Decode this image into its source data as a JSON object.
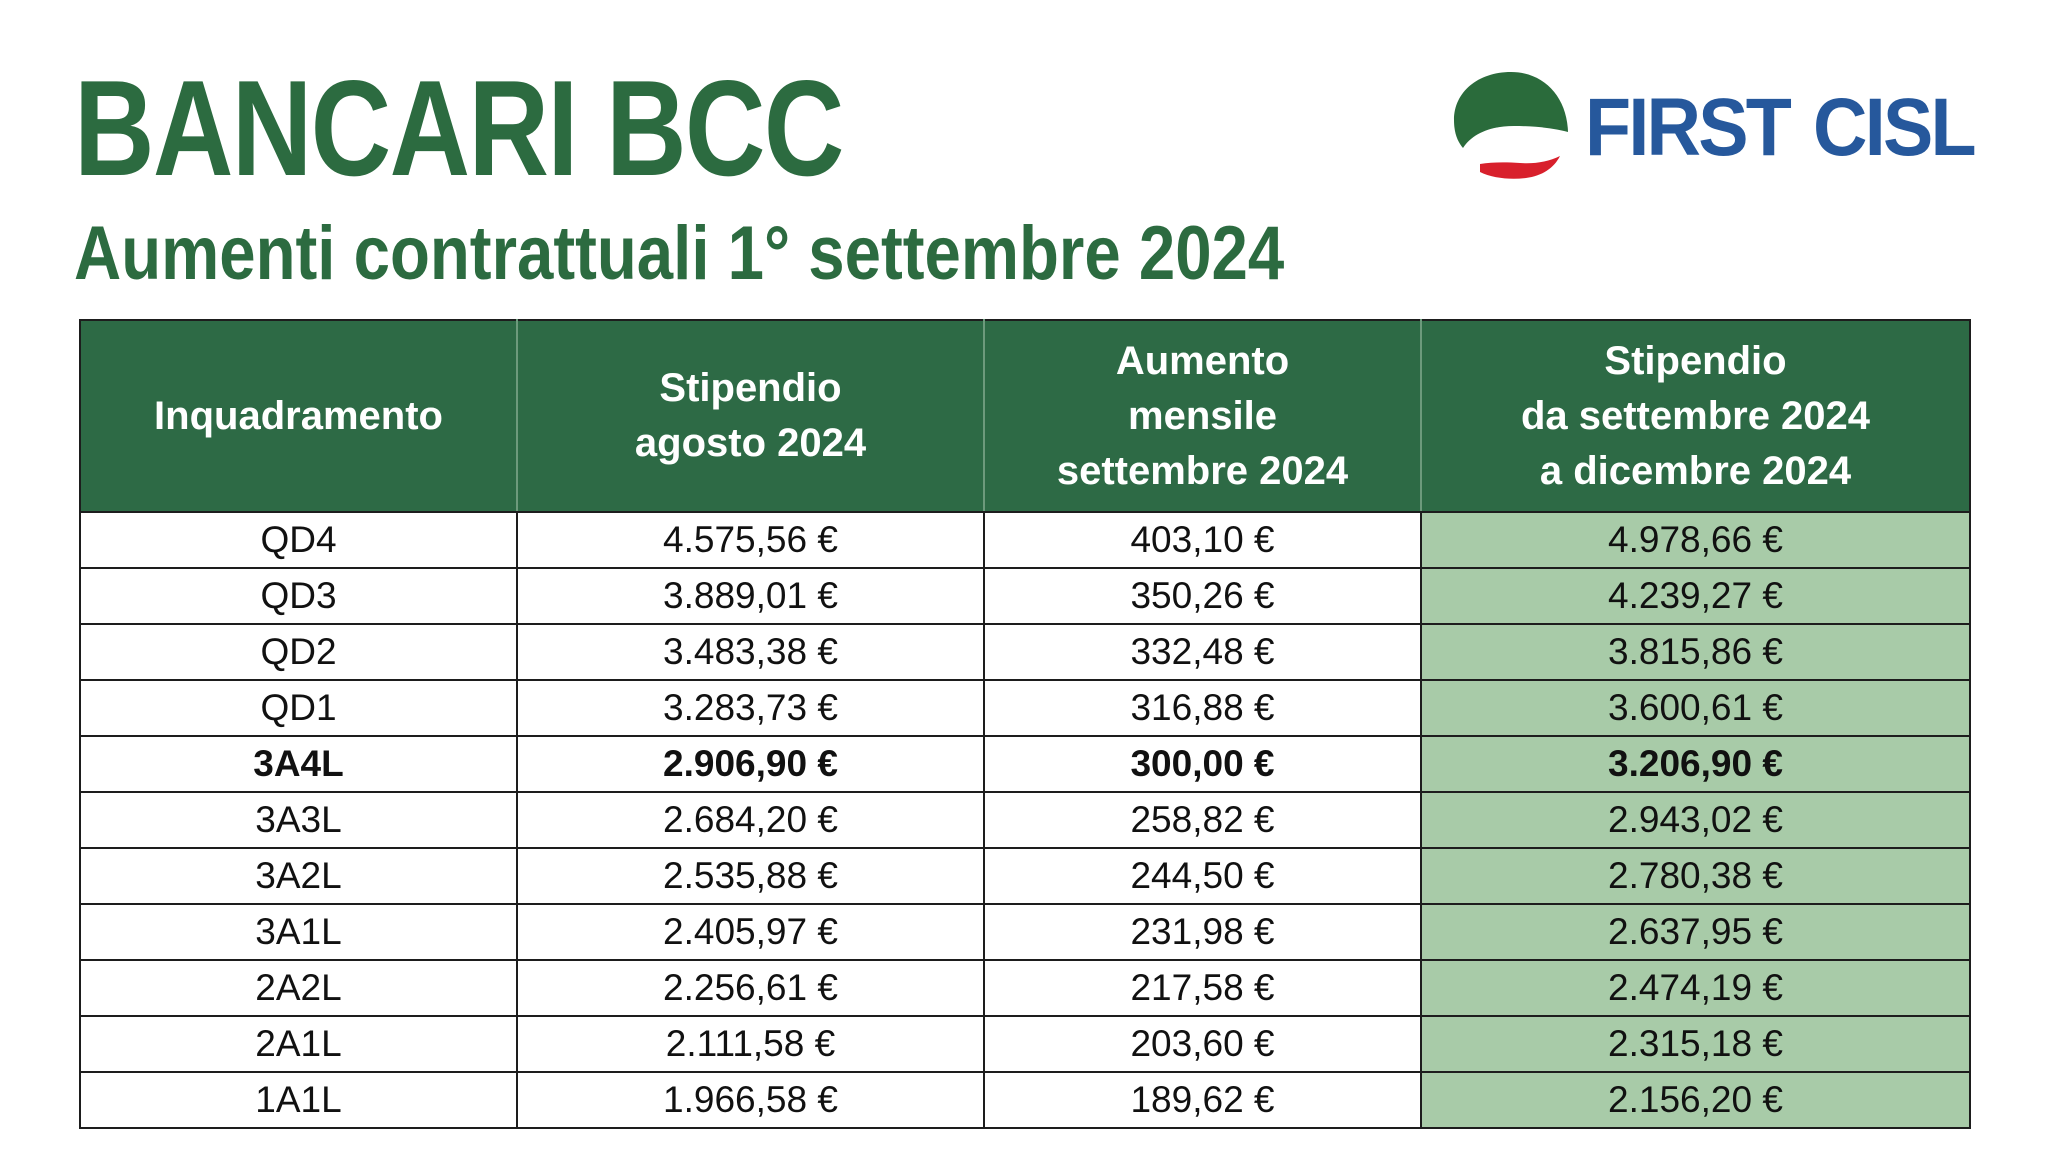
{
  "header": {
    "title": "BANCARI BCC",
    "subtitle": "Aumenti contrattuali 1° settembre 2024"
  },
  "logo": {
    "word1": "FIRST",
    "word2": "CISL",
    "colors": {
      "green": "#2a6b3b",
      "red": "#d8202c",
      "blue": "#26589c"
    }
  },
  "colors": {
    "title_green": "#2c6b40",
    "header_bg": "#2d6a45",
    "highlight_column_bg": "#a8cba8"
  },
  "table": {
    "headers": [
      [
        "Inquadramento"
      ],
      [
        "Stipendio",
        "agosto 2024"
      ],
      [
        "Aumento",
        "mensile",
        "settembre 2024"
      ],
      [
        "Stipendio",
        "da settembre 2024",
        "a dicembre 2024"
      ]
    ],
    "rows": [
      {
        "level": "QD4",
        "aug": "4.575,56 €",
        "increase": "403,10 €",
        "new": "4.978,66 €",
        "bold": false
      },
      {
        "level": "QD3",
        "aug": "3.889,01 €",
        "increase": "350,26 €",
        "new": "4.239,27 €",
        "bold": false
      },
      {
        "level": "QD2",
        "aug": "3.483,38 €",
        "increase": "332,48 €",
        "new": "3.815,86 €",
        "bold": false
      },
      {
        "level": "QD1",
        "aug": "3.283,73 €",
        "increase": "316,88 €",
        "new": "3.600,61 €",
        "bold": false
      },
      {
        "level": "3A4L",
        "aug": "2.906,90 €",
        "increase": "300,00 €",
        "new": "3.206,90 €",
        "bold": true
      },
      {
        "level": "3A3L",
        "aug": "2.684,20 €",
        "increase": "258,82 €",
        "new": "2.943,02 €",
        "bold": false
      },
      {
        "level": "3A2L",
        "aug": "2.535,88 €",
        "increase": "244,50 €",
        "new": "2.780,38 €",
        "bold": false
      },
      {
        "level": "3A1L",
        "aug": "2.405,97 €",
        "increase": "231,98 €",
        "new": "2.637,95 €",
        "bold": false
      },
      {
        "level": "2A2L",
        "aug": "2.256,61 €",
        "increase": "217,58 €",
        "new": "2.474,19 €",
        "bold": false
      },
      {
        "level": "2A1L",
        "aug": "2.111,58 €",
        "increase": "203,60 €",
        "new": "2.315,18 €",
        "bold": false
      },
      {
        "level": "1A1L",
        "aug": "1.966,58 €",
        "increase": "189,62 €",
        "new": "2.156,20 €",
        "bold": false
      }
    ]
  }
}
